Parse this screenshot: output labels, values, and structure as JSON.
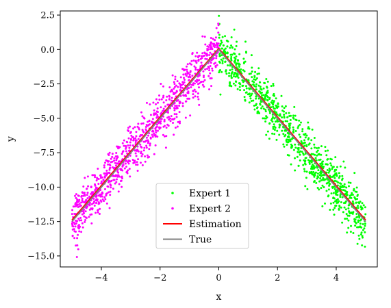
{
  "chart_data": {
    "type": "scatter",
    "title": "",
    "xlabel": "x",
    "ylabel": "y",
    "xlim": [
      -5.4,
      5.4
    ],
    "ylim": [
      -15.8,
      2.8
    ],
    "xticks": [
      -4,
      -2,
      0,
      2,
      4
    ],
    "xtick_labels": [
      "−4",
      "−2",
      "0",
      "2",
      "4"
    ],
    "yticks": [
      2.5,
      0.0,
      -2.5,
      -5.0,
      -7.5,
      -10.0,
      -12.5,
      -15.0
    ],
    "ytick_labels": [
      "2.5",
      "0.0",
      "−2.5",
      "−5.0",
      "−7.5",
      "−10.0",
      "−12.5",
      "−15.0"
    ],
    "grid": false,
    "legend_position": "lower-center",
    "series": [
      {
        "name": "Expert 1",
        "kind": "scatter",
        "color": "#00ff00",
        "x_range": [
          0,
          5
        ],
        "trend": "y = -2.5x",
        "noise_sd": 0.9
      },
      {
        "name": "Expert 2",
        "kind": "scatter",
        "color": "#ff00ff",
        "x_range": [
          -5,
          0
        ],
        "trend": "y = 2.5x",
        "noise_sd": 0.9
      },
      {
        "name": "Estimation",
        "kind": "line",
        "color": "#ff0000",
        "x": [
          -5,
          -0.15,
          0,
          0.15,
          5
        ],
        "y": [
          -12.4,
          -0.3,
          0.05,
          -0.3,
          -12.4
        ]
      },
      {
        "name": "True",
        "kind": "line",
        "color": "#808080",
        "x": [
          -5,
          0,
          5
        ],
        "y": [
          -12.5,
          0,
          -12.5
        ]
      }
    ]
  }
}
